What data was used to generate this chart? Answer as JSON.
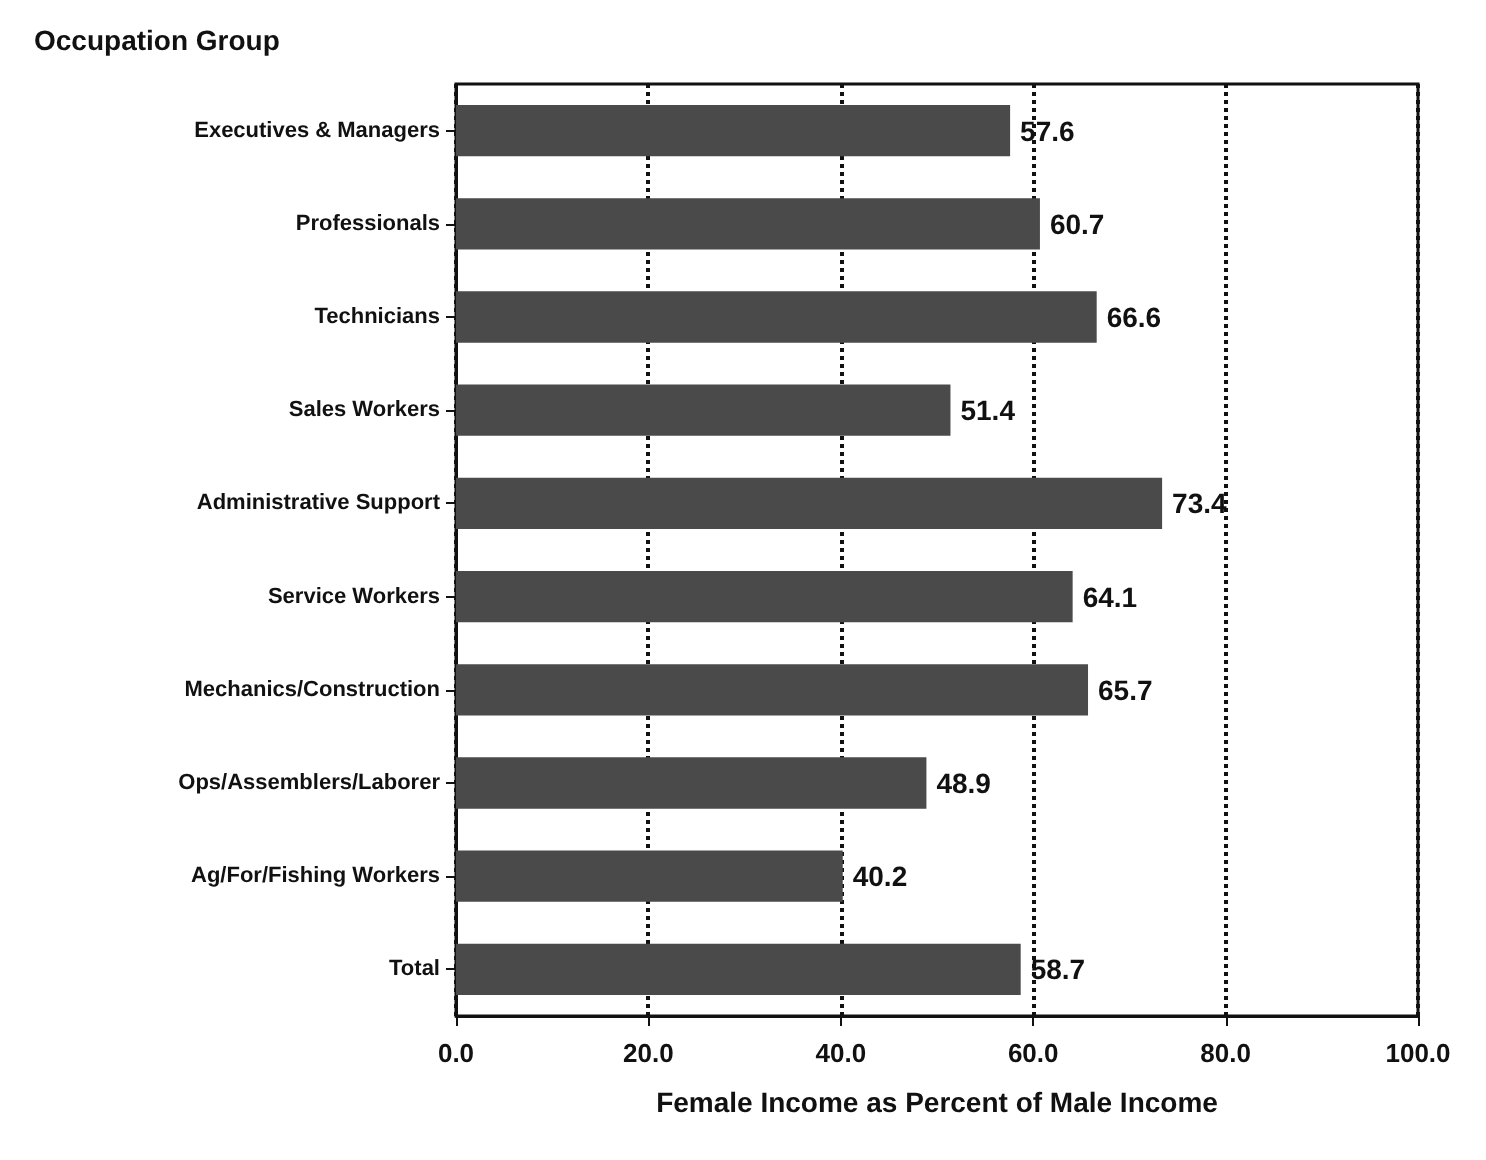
{
  "chart_data": {
    "type": "bar",
    "orientation": "horizontal",
    "ylabel": "Occupation Group",
    "xlabel": "Female Income as Percent of Male Income",
    "categories": [
      "Executives & Managers",
      "Professionals",
      "Technicians",
      "Sales Workers",
      "Administrative Support",
      "Service Workers",
      "Mechanics/Construction",
      "Ops/Assemblers/Laborer",
      "Ag/For/Fishing Workers",
      "Total"
    ],
    "values": [
      57.6,
      60.7,
      66.6,
      51.4,
      73.4,
      64.1,
      65.7,
      48.9,
      40.2,
      58.7
    ],
    "color": "#4a4a4a",
    "xlim": [
      0,
      100
    ],
    "xticks": [
      {
        "value": 0,
        "label": "0.0"
      },
      {
        "value": 20,
        "label": "20.0"
      },
      {
        "value": 40,
        "label": "40.0"
      },
      {
        "value": 60,
        "label": "60.0"
      },
      {
        "value": 80,
        "label": "80.0"
      },
      {
        "value": 100,
        "label": "100.0"
      }
    ],
    "grid": "x",
    "data_labels": true
  }
}
